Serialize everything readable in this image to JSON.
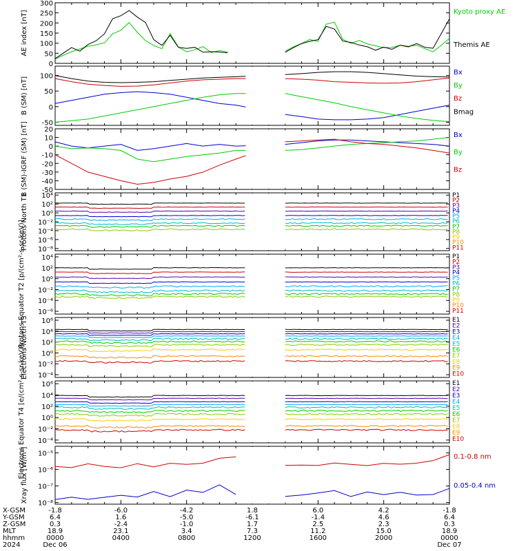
{
  "chart_data": [
    {
      "type": "line",
      "ylabel": "AE index [nT]",
      "yticks": [
        "0",
        "50",
        "100",
        "150",
        "200",
        "250",
        "300"
      ],
      "ylim": [
        0,
        300
      ],
      "series": [
        {
          "name": "Kyoto proxy AE",
          "color": "#00cc00",
          "x": [
            0,
            1,
            1.5,
            2,
            2.5,
            3,
            3.5,
            4,
            4.5,
            5,
            5.5,
            6,
            6.5,
            7,
            7.5,
            8,
            8.5,
            9,
            9.5,
            10,
            10.5,
            11,
            11.5,
            12,
            12.5,
            13,
            13.5,
            14,
            14.5,
            15,
            15.5,
            16,
            16.5,
            17,
            17.5,
            18,
            18.5,
            19,
            19.5,
            20,
            20.5,
            21,
            21.5,
            22,
            22.5,
            23,
            23.5,
            24
          ],
          "y": [
            20,
            60,
            70,
            80,
            90,
            100,
            150,
            160,
            200,
            150,
            110,
            90,
            70,
            150,
            80,
            60,
            70,
            80,
            50,
            60,
            60,
            null,
            null,
            null,
            null,
            null,
            null,
            60,
            80,
            100,
            120,
            110,
            190,
            200,
            120,
            100,
            110,
            100,
            90,
            80,
            80,
            90,
            80,
            90,
            70,
            60,
            90,
            120
          ]
        },
        {
          "name": "Themis AE",
          "color": "#000000",
          "x": [
            0,
            1,
            1.5,
            2,
            2.5,
            3,
            3.5,
            4,
            4.5,
            5,
            5.5,
            6,
            6.5,
            7,
            7.5,
            8,
            8.5,
            9,
            9.5,
            10,
            10.5,
            11,
            11.5,
            12,
            12.5,
            13,
            13.5,
            14,
            14.5,
            15,
            15.5,
            16,
            16.5,
            17,
            17.5,
            18,
            18.5,
            19,
            19.5,
            20,
            20.5,
            21,
            21.5,
            22,
            22.5,
            23,
            23.5,
            24
          ],
          "y": [
            20,
            80,
            60,
            90,
            110,
            150,
            220,
            240,
            260,
            230,
            200,
            120,
            90,
            140,
            80,
            70,
            80,
            60,
            60,
            60,
            50,
            null,
            null,
            null,
            null,
            null,
            null,
            60,
            80,
            100,
            110,
            120,
            180,
            170,
            110,
            100,
            90,
            80,
            70,
            80,
            70,
            90,
            80,
            100,
            80,
            70,
            150,
            220
          ]
        }
      ]
    },
    {
      "type": "line",
      "ylabel": "B (SM) [nT]",
      "yticks": [
        "-50",
        "0",
        "50",
        "100"
      ],
      "ylim": [
        -60,
        130
      ],
      "series": [
        {
          "name": "Bx",
          "color": "#0000cc",
          "x": [
            0,
            1,
            2,
            3,
            4,
            5,
            6,
            7,
            8,
            9,
            10,
            11,
            14,
            15,
            16,
            17,
            18,
            19,
            20,
            21,
            22,
            23,
            24
          ],
          "y": [
            10,
            20,
            30,
            40,
            45,
            48,
            45,
            40,
            30,
            20,
            10,
            5,
            -25,
            -32,
            -40,
            -42,
            -42,
            -40,
            -35,
            -25,
            -15,
            -5,
            5
          ]
        },
        {
          "name": "By",
          "color": "#00cc00",
          "x": [
            0,
            1,
            2,
            3,
            4,
            5,
            6,
            7,
            8,
            9,
            10,
            11,
            14,
            15,
            16,
            17,
            18,
            19,
            20,
            21,
            22,
            23,
            24
          ],
          "y": [
            -50,
            -45,
            -40,
            -30,
            -20,
            -10,
            0,
            10,
            20,
            30,
            38,
            42,
            42,
            32,
            22,
            12,
            0,
            -10,
            -20,
            -30,
            -38,
            -44,
            -48
          ]
        },
        {
          "name": "Bz",
          "color": "#cc0000",
          "x": [
            0,
            1,
            2,
            3,
            4,
            5,
            6,
            7,
            8,
            9,
            10,
            11,
            14,
            15,
            16,
            17,
            18,
            19,
            20,
            21,
            22,
            23,
            24
          ],
          "y": [
            90,
            80,
            72,
            68,
            65,
            66,
            70,
            76,
            82,
            86,
            88,
            90,
            90,
            88,
            85,
            80,
            78,
            76,
            75,
            76,
            80,
            86,
            92
          ]
        },
        {
          "name": "Bmag",
          "color": "#000000",
          "x": [
            0,
            1,
            2,
            3,
            4,
            5,
            6,
            7,
            8,
            9,
            10,
            11,
            14,
            15,
            16,
            17,
            18,
            19,
            20,
            21,
            22,
            23,
            24
          ],
          "y": [
            100,
            90,
            82,
            78,
            77,
            78,
            80,
            84,
            88,
            92,
            94,
            96,
            103,
            106,
            110,
            112,
            112,
            110,
            106,
            102,
            98,
            96,
            95
          ]
        }
      ]
    },
    {
      "type": "line",
      "ylabel": "B (SM)-IGRF (SM) [nT]",
      "yticks": [
        "-50",
        "-40",
        "-30",
        "-20",
        "-10",
        "0",
        "10",
        "20"
      ],
      "ylim": [
        -50,
        20
      ],
      "series": [
        {
          "name": "Bx",
          "color": "#0000cc",
          "x": [
            0,
            1,
            2,
            3,
            4,
            5,
            6,
            7,
            8,
            9,
            10,
            11,
            14,
            15,
            16,
            17,
            18,
            19,
            20,
            21,
            22,
            23,
            24
          ],
          "y": [
            5,
            0,
            -2,
            0,
            2,
            -5,
            -3,
            0,
            3,
            0,
            2,
            0,
            2,
            4,
            6,
            7,
            7,
            6,
            5,
            4,
            3,
            2,
            0
          ]
        },
        {
          "name": "By",
          "color": "#00cc00",
          "x": [
            0,
            1,
            2,
            3,
            4,
            5,
            6,
            7,
            8,
            9,
            10,
            11,
            14,
            15,
            16,
            17,
            18,
            19,
            20,
            21,
            22,
            23,
            24
          ],
          "y": [
            0,
            -3,
            -2,
            -3,
            -5,
            -15,
            -18,
            -15,
            -12,
            -10,
            -8,
            -5,
            -5,
            -4,
            -2,
            0,
            2,
            3,
            4,
            5,
            6,
            8,
            10
          ]
        },
        {
          "name": "Bz",
          "color": "#cc0000",
          "x": [
            0,
            1,
            2,
            3,
            4,
            5,
            6,
            7,
            8,
            9,
            10,
            11,
            14,
            15,
            16,
            17,
            18,
            19,
            20,
            21,
            22,
            23,
            24
          ],
          "y": [
            -10,
            -20,
            -30,
            -35,
            -40,
            -44,
            -42,
            -38,
            -35,
            -30,
            -22,
            -15,
            5,
            6,
            7,
            8,
            5,
            3,
            2,
            0,
            -2,
            -5,
            -8
          ]
        }
      ]
    },
    {
      "type": "line",
      "ylabel": "Protons North T1",
      "yticks": [
        "10⁻⁸",
        "10⁻⁶",
        "10⁻⁴",
        "10⁻²",
        "10⁰",
        "10²",
        "10⁴"
      ],
      "ylog": true,
      "ylim": [
        -8.5,
        4.5
      ],
      "levels": [
        2.2,
        1.3,
        0.4,
        -0.6,
        -1.4,
        -2.3,
        -2.9,
        -3.7
      ],
      "series_names": [
        "P1",
        "P2",
        "P3",
        "P4",
        "P5",
        "P6",
        "P7",
        "P8",
        "P9",
        "P10",
        "P11"
      ],
      "colors": [
        "#000000",
        "#cc0000",
        "#5500aa",
        "#0000cc",
        "#00aaff",
        "#00bbbb",
        "#00cc00",
        "#88cc00",
        "#ffcc00",
        "#ff8800",
        "#cc0000"
      ]
    },
    {
      "type": "line",
      "ylabel": "Protons Equator T2 [p/(cm²-s-sr-keV)]",
      "yticks": [
        "10⁻⁶",
        "10⁻⁴",
        "10⁻²",
        "10⁰",
        "10²",
        "10⁴"
      ],
      "ylog": true,
      "ylim": [
        -6.5,
        4.5
      ],
      "levels": [
        2.0,
        1.2,
        0.3,
        -0.6,
        -1.4,
        -2.2,
        -2.8,
        -3.3
      ],
      "series_names": [
        "P1",
        "P2",
        "P3",
        "P4",
        "P5",
        "P6",
        "P7",
        "P8",
        "P9",
        "P10",
        "P11"
      ],
      "colors": [
        "#000000",
        "#cc0000",
        "#5500aa",
        "#0000cc",
        "#00aaff",
        "#00bbbb",
        "#00cc00",
        "#88cc00",
        "#ffcc00",
        "#ff8800",
        "#cc0000"
      ]
    },
    {
      "type": "line",
      "ylabel": "Electrons North T3",
      "yticks": [
        "10⁻⁴",
        "10⁻²",
        "10⁰",
        "10²",
        "10⁴",
        "10⁶"
      ],
      "ylog": true,
      "ylim": [
        -4.5,
        6.5
      ],
      "levels": [
        4.3,
        3.9,
        3.5,
        3.1,
        2.6,
        2.1,
        1.5,
        0.6,
        -0.6,
        -1.5
      ],
      "series_names": [
        "E1",
        "E2",
        "E3",
        "E4",
        "E5",
        "E6",
        "E7",
        "E8",
        "E9",
        "E10"
      ],
      "colors": [
        "#000000",
        "#5500aa",
        "#0000cc",
        "#00aaff",
        "#00bbbb",
        "#00cc00",
        "#88cc00",
        "#ffcc00",
        "#ff8800",
        "#cc0000"
      ]
    },
    {
      "type": "line",
      "ylabel": "Electrons Equator T4 [e/(cm²-s-sr-keV)]",
      "yticks": [
        "10⁻⁴",
        "10⁻²",
        "10⁰",
        "10²",
        "10⁴",
        "10⁶"
      ],
      "ylog": true,
      "ylim": [
        -4.5,
        6.5
      ],
      "levels": [
        3.9,
        3.4,
        2.8,
        2.3,
        1.8,
        1.2,
        0.6,
        -0.3,
        -1.5,
        -2.2
      ],
      "series_names": [
        "E1",
        "E2",
        "E3",
        "E4",
        "E5",
        "E6",
        "E7",
        "E8",
        "E9",
        "E10"
      ],
      "colors": [
        "#000000",
        "#5500aa",
        "#0000cc",
        "#00aaff",
        "#00bbbb",
        "#00cc00",
        "#88cc00",
        "#ffcc00",
        "#ff8800",
        "#cc0000"
      ]
    },
    {
      "type": "line",
      "ylabel": "Xray flux [W/m²]",
      "yticks": [
        "10⁻⁸",
        "10⁻⁷",
        "10⁻⁶",
        "10⁻⁵"
      ],
      "ylog": true,
      "ylim": [
        -8.1,
        -4.6
      ],
      "series": [
        {
          "name": "0.1-0.8 nm",
          "color": "#cc0000",
          "x": [
            0,
            1,
            2,
            3,
            4,
            5,
            6,
            7,
            8,
            9,
            10,
            11,
            12,
            13,
            14,
            15,
            16,
            17,
            18,
            19,
            20,
            21,
            22,
            23,
            24
          ],
          "y": [
            -5.8,
            -5.9,
            -5.7,
            -5.8,
            -5.9,
            -5.7,
            -5.8,
            -5.6,
            -5.7,
            -5.6,
            -5.3,
            -5.2,
            null,
            -5.9,
            -5.8,
            -5.7,
            -5.8,
            -5.6,
            -5.7,
            -5.8,
            -5.6,
            -5.7,
            -5.6,
            -5.5,
            -5.1
          ]
        },
        {
          "name": "0.05-0.4 nm",
          "color": "#0000cc",
          "x": [
            0,
            1,
            2,
            3,
            4,
            5,
            6,
            7,
            8,
            9,
            10,
            11,
            12,
            13,
            14,
            15,
            16,
            17,
            18,
            19,
            20,
            21,
            22,
            23,
            24
          ],
          "y": [
            -7.8,
            -7.7,
            -7.8,
            -7.7,
            -7.6,
            -7.7,
            -7.3,
            -7.6,
            -7.2,
            -7.4,
            -6.9,
            -7.5,
            null,
            -7.8,
            -7.6,
            -7.5,
            -7.4,
            -7.3,
            -7.6,
            -7.4,
            -7.5,
            -7.4,
            -7.6,
            -7.5,
            -7.2
          ]
        }
      ]
    }
  ],
  "orbit": {
    "row_labels": [
      "X-GSM",
      "Y-GSM",
      "Z-GSM",
      "MLT",
      "hhmm",
      "2024"
    ],
    "columns": [
      [
        "-1.8",
        "6.4",
        "0.3",
        "18.9",
        "0000",
        "Dec 06"
      ],
      [
        "-6.0",
        "1.6",
        "-2.4",
        "23.1",
        "0400",
        ""
      ],
      [
        "-4.2",
        "-5.0",
        "-1.0",
        "3.4",
        "0800",
        ""
      ],
      [
        "1.8",
        "-6.1",
        "1.7",
        "7.3",
        "1200",
        ""
      ],
      [
        "6.0",
        "-1.4",
        "2.5",
        "11.2",
        "1600",
        ""
      ],
      [
        "4.2",
        "4.6",
        "2.3",
        "15.0",
        "2000",
        ""
      ],
      [
        "-1.8",
        "6.4",
        "0.3",
        "18.9",
        "0000",
        "Dec 07"
      ]
    ]
  }
}
